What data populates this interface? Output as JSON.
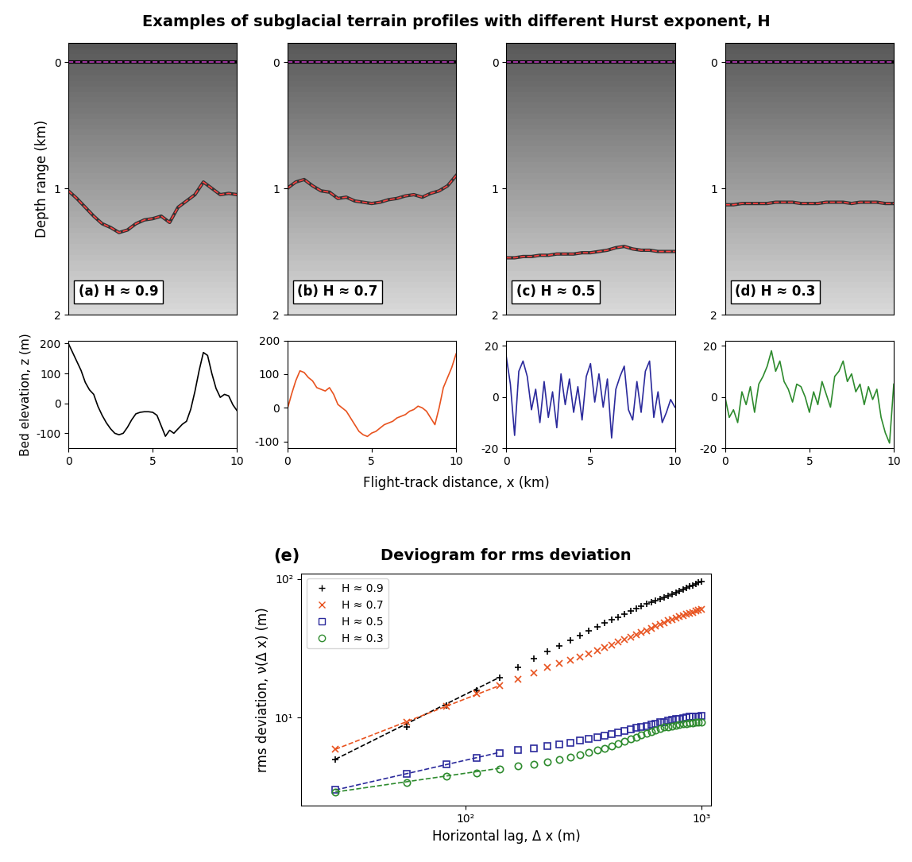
{
  "figure_title": "Examples of subglacial terrain profiles with different Hurst exponent, H",
  "profile_xlabel": "Flight-track distance, x (km)",
  "chart_data": [
    {
      "type": "radar",
      "panel_label": "(a) H ≈ 0.9",
      "ylabel": "Depth range (km)",
      "tick_labels": "y",
      "xlim": [
        0,
        10
      ],
      "ylim": [
        2,
        -0.15
      ],
      "yticks": [
        0,
        1,
        2
      ],
      "x": [
        0,
        0.5,
        1,
        1.5,
        2,
        2.5,
        3,
        3.5,
        4,
        4.5,
        5,
        5.5,
        6,
        6.5,
        7,
        7.5,
        8,
        8.5,
        9,
        9.5,
        10
      ],
      "surface_depth": [
        0,
        0,
        0,
        0,
        0,
        0,
        0,
        0,
        0,
        0,
        0,
        0,
        0,
        0,
        0,
        0,
        0,
        0,
        0,
        0,
        0
      ],
      "bed_depth": [
        1.02,
        1.08,
        1.15,
        1.22,
        1.28,
        1.31,
        1.35,
        1.33,
        1.28,
        1.25,
        1.24,
        1.22,
        1.27,
        1.15,
        1.1,
        1.05,
        0.95,
        1.0,
        1.05,
        1.04,
        1.05
      ]
    },
    {
      "type": "radar",
      "panel_label": "(b) H ≈ 0.7",
      "tick_labels": "y",
      "xlim": [
        0,
        10
      ],
      "ylim": [
        2,
        -0.15
      ],
      "yticks": [
        0,
        1,
        2
      ],
      "x": [
        0,
        0.5,
        1,
        1.5,
        2,
        2.5,
        3,
        3.5,
        4,
        4.5,
        5,
        5.5,
        6,
        6.5,
        7,
        7.5,
        8,
        8.5,
        9,
        9.5,
        10
      ],
      "surface_depth": [
        0,
        0,
        0,
        0,
        0,
        0,
        0,
        0,
        0,
        0,
        0,
        0,
        0,
        0,
        0,
        0,
        0,
        0,
        0,
        0,
        0
      ],
      "bed_depth": [
        1.0,
        0.95,
        0.93,
        0.98,
        1.02,
        1.03,
        1.08,
        1.07,
        1.1,
        1.11,
        1.12,
        1.11,
        1.09,
        1.08,
        1.06,
        1.05,
        1.07,
        1.04,
        1.02,
        0.98,
        0.9
      ]
    },
    {
      "type": "radar",
      "panel_label": "(c) H ≈ 0.5",
      "tick_labels": "y",
      "xlim": [
        0,
        10
      ],
      "ylim": [
        2,
        -0.15
      ],
      "yticks": [
        0,
        1,
        2
      ],
      "x": [
        0,
        0.5,
        1,
        1.5,
        2,
        2.5,
        3,
        3.5,
        4,
        4.5,
        5,
        5.5,
        6,
        6.5,
        7,
        7.5,
        8,
        8.5,
        9,
        9.5,
        10
      ],
      "surface_depth": [
        0,
        0,
        0,
        0,
        0,
        0,
        0,
        0,
        0,
        0,
        0,
        0,
        0,
        0,
        0,
        0,
        0,
        0,
        0,
        0,
        0
      ],
      "bed_depth": [
        1.55,
        1.55,
        1.54,
        1.54,
        1.53,
        1.53,
        1.52,
        1.52,
        1.52,
        1.51,
        1.51,
        1.5,
        1.49,
        1.47,
        1.46,
        1.48,
        1.49,
        1.49,
        1.5,
        1.5,
        1.5
      ]
    },
    {
      "type": "radar",
      "panel_label": "(d) H ≈ 0.3",
      "tick_labels": "y",
      "xlim": [
        0,
        10
      ],
      "ylim": [
        2,
        -0.15
      ],
      "yticks": [
        0,
        1,
        2
      ],
      "x": [
        0,
        0.5,
        1,
        1.5,
        2,
        2.5,
        3,
        3.5,
        4,
        4.5,
        5,
        5.5,
        6,
        6.5,
        7,
        7.5,
        8,
        8.5,
        9,
        9.5,
        10
      ],
      "surface_depth": [
        0,
        0,
        0,
        0,
        0,
        0,
        0,
        0,
        0,
        0,
        0,
        0,
        0,
        0,
        0,
        0,
        0,
        0,
        0,
        0,
        0
      ],
      "bed_depth": [
        1.13,
        1.13,
        1.12,
        1.12,
        1.12,
        1.12,
        1.11,
        1.11,
        1.11,
        1.12,
        1.12,
        1.12,
        1.11,
        1.11,
        1.11,
        1.12,
        1.11,
        1.11,
        1.11,
        1.12,
        1.12
      ]
    },
    {
      "type": "line",
      "ylabel": "Bed elevation, z (m)",
      "color": "#000000",
      "xlim": [
        0,
        10
      ],
      "xticks": [
        0,
        5,
        10
      ],
      "ylim": [
        -150,
        210
      ],
      "yticks": [
        -100,
        0,
        100,
        200
      ],
      "x": [
        0,
        0.25,
        0.5,
        0.75,
        1,
        1.25,
        1.5,
        1.75,
        2,
        2.25,
        2.5,
        2.75,
        3,
        3.25,
        3.5,
        3.75,
        4,
        4.25,
        4.5,
        4.75,
        5,
        5.25,
        5.5,
        5.75,
        6,
        6.25,
        6.5,
        6.75,
        7,
        7.25,
        7.5,
        7.75,
        8,
        8.25,
        8.5,
        8.75,
        9,
        9.25,
        9.5,
        9.75,
        10
      ],
      "values": [
        200,
        170,
        140,
        110,
        70,
        45,
        30,
        -10,
        -40,
        -65,
        -85,
        -100,
        -105,
        -100,
        -80,
        -55,
        -35,
        -30,
        -28,
        -28,
        -30,
        -40,
        -75,
        -110,
        -90,
        -100,
        -85,
        -70,
        -60,
        -20,
        40,
        110,
        170,
        160,
        100,
        50,
        20,
        30,
        25,
        -5,
        -25
      ]
    },
    {
      "type": "line",
      "color": "#e8531f",
      "xlim": [
        0,
        10
      ],
      "xticks": [
        0,
        5,
        10
      ],
      "ylim": [
        -120,
        200
      ],
      "yticks": [
        -100,
        0,
        100,
        200
      ],
      "x": [
        0,
        0.25,
        0.5,
        0.75,
        1,
        1.25,
        1.5,
        1.75,
        2,
        2.25,
        2.5,
        2.75,
        3,
        3.25,
        3.5,
        3.75,
        4,
        4.25,
        4.5,
        4.75,
        5,
        5.25,
        5.5,
        5.75,
        6,
        6.25,
        6.5,
        6.75,
        7,
        7.25,
        7.5,
        7.75,
        8,
        8.25,
        8.5,
        8.75,
        9,
        9.25,
        9.5,
        9.75,
        10
      ],
      "values": [
        -5,
        40,
        80,
        110,
        105,
        90,
        80,
        60,
        55,
        50,
        60,
        40,
        10,
        0,
        -10,
        -30,
        -50,
        -70,
        -80,
        -85,
        -75,
        -70,
        -60,
        -50,
        -45,
        -40,
        -30,
        -25,
        -20,
        -10,
        -5,
        5,
        0,
        -10,
        -30,
        -50,
        0,
        60,
        90,
        120,
        160
      ]
    },
    {
      "type": "line",
      "color": "#2b2a9c",
      "xlim": [
        0,
        10
      ],
      "xticks": [
        0,
        5,
        10
      ],
      "ylim": [
        -20,
        22
      ],
      "yticks": [
        -20,
        0,
        20
      ],
      "x": [
        0,
        0.25,
        0.5,
        0.75,
        1,
        1.25,
        1.5,
        1.75,
        2,
        2.25,
        2.5,
        2.75,
        3,
        3.25,
        3.5,
        3.75,
        4,
        4.25,
        4.5,
        4.75,
        5,
        5.25,
        5.5,
        5.75,
        6,
        6.25,
        6.5,
        6.75,
        7,
        7.25,
        7.5,
        7.75,
        8,
        8.25,
        8.5,
        8.75,
        9,
        9.25,
        9.5,
        9.75,
        10
      ],
      "values": [
        16,
        5,
        -15,
        10,
        14,
        8,
        -5,
        3,
        -10,
        6,
        -8,
        2,
        -12,
        9,
        -3,
        7,
        -6,
        4,
        -9,
        8,
        13,
        -2,
        9,
        -4,
        7,
        -16,
        3,
        8,
        12,
        -5,
        -9,
        6,
        -6,
        10,
        14,
        -8,
        2,
        -10,
        -6,
        -1,
        -4
      ]
    },
    {
      "type": "line",
      "color": "#2e8b2e",
      "xlim": [
        0,
        10
      ],
      "xticks": [
        0,
        5,
        10
      ],
      "ylim": [
        -20,
        22
      ],
      "yticks": [
        -20,
        0,
        20
      ],
      "x": [
        0,
        0.25,
        0.5,
        0.75,
        1,
        1.25,
        1.5,
        1.75,
        2,
        2.25,
        2.5,
        2.75,
        3,
        3.25,
        3.5,
        3.75,
        4,
        4.25,
        4.5,
        4.75,
        5,
        5.25,
        5.5,
        5.75,
        6,
        6.25,
        6.5,
        6.75,
        7,
        7.25,
        7.5,
        7.75,
        8,
        8.25,
        8.5,
        8.75,
        9,
        9.25,
        9.5,
        9.75,
        10
      ],
      "values": [
        0,
        -8,
        -5,
        -10,
        2,
        -3,
        4,
        -6,
        5,
        8,
        12,
        18,
        10,
        14,
        6,
        3,
        -2,
        5,
        4,
        0,
        -6,
        2,
        -3,
        6,
        1,
        -4,
        8,
        10,
        14,
        6,
        9,
        2,
        5,
        -3,
        4,
        -1,
        3,
        -8,
        -14,
        -18,
        5
      ]
    },
    {
      "type": "scatter",
      "panel_label": "(e)",
      "title": "Deviogram for rms deviation",
      "xlabel": "Horizontal lag, Δ x (m)",
      "ylabel": "rms deviation, ν(Δ x) (m)",
      "log": true,
      "legend": "upper left",
      "xlim": [
        20,
        1100
      ],
      "ylim": [
        2.3,
        110
      ],
      "xticks": [
        {
          "value": 100,
          "label": "10²"
        },
        {
          "value": 1000,
          "label": "10³"
        }
      ],
      "yticks": [
        {
          "value": 10,
          "label": "10¹"
        },
        {
          "value": 100,
          "label": "10²"
        }
      ],
      "x": [
        28,
        56,
        83,
        111,
        139,
        167,
        194,
        222,
        250,
        278,
        306,
        333,
        361,
        389,
        417,
        444,
        472,
        500,
        528,
        556,
        583,
        611,
        639,
        667,
        694,
        722,
        750,
        778,
        806,
        833,
        861,
        889,
        917,
        944,
        972,
        1000
      ],
      "fit_x": [
        28,
        139
      ],
      "series": [
        {
          "name": "H ≈ 0.9",
          "color": "#000000",
          "marker": "plus",
          "values": [
            5.0,
            8.6,
            12.2,
            15.7,
            19.4,
            23,
            26.5,
            30,
            33,
            36,
            39,
            42,
            45,
            48,
            50.5,
            53,
            56,
            58.5,
            61,
            63.5,
            66,
            68,
            70,
            72,
            74,
            76,
            78,
            80,
            82,
            84,
            86,
            88,
            90,
            92,
            94,
            96
          ],
          "fit_values": [
            5.0,
            19.5
          ]
        },
        {
          "name": "H ≈ 0.7",
          "color": "#e8531f",
          "marker": "x",
          "values": [
            5.9,
            9.3,
            12.0,
            14.8,
            17.0,
            19.0,
            21.0,
            23,
            24.5,
            26,
            27.5,
            29,
            30.5,
            32,
            33.5,
            35,
            36.5,
            38,
            39.5,
            41,
            42.5,
            44,
            45.5,
            47,
            48.5,
            50,
            51,
            52,
            53.5,
            54.5,
            55.5,
            56.5,
            57.5,
            58.5,
            59.5,
            60.5
          ],
          "fit_values": [
            5.9,
            17.0
          ]
        },
        {
          "name": "H ≈ 0.5",
          "color": "#2b2a9c",
          "marker": "square",
          "values": [
            3.0,
            3.9,
            4.6,
            5.1,
            5.5,
            5.8,
            6.0,
            6.2,
            6.4,
            6.6,
            6.8,
            7.0,
            7.2,
            7.4,
            7.6,
            7.8,
            8.0,
            8.2,
            8.4,
            8.6,
            8.7,
            8.9,
            9.0,
            9.2,
            9.3,
            9.5,
            9.6,
            9.7,
            9.8,
            9.9,
            10.0,
            10.1,
            10.1,
            10.2,
            10.2,
            10.3
          ],
          "fit_values": [
            3.0,
            5.6
          ]
        },
        {
          "name": "H ≈ 0.3",
          "color": "#2e8b2e",
          "marker": "circle",
          "values": [
            2.9,
            3.4,
            3.75,
            4.0,
            4.25,
            4.5,
            4.6,
            4.8,
            5.0,
            5.2,
            5.4,
            5.6,
            5.8,
            6.0,
            6.2,
            6.5,
            6.7,
            7.0,
            7.2,
            7.5,
            7.7,
            7.9,
            8.1,
            8.3,
            8.5,
            8.6,
            8.7,
            8.8,
            8.9,
            9.0,
            9.05,
            9.1,
            9.15,
            9.2,
            9.25,
            9.3
          ],
          "fit_values": [
            2.9,
            4.3
          ]
        }
      ]
    }
  ]
}
